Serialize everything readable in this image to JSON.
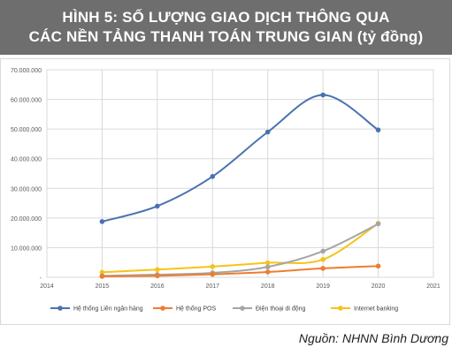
{
  "header": {
    "title_line1": "HÌNH 5: SỐ LƯỢNG GIAO DỊCH THÔNG QUA",
    "title_line2": "CÁC NỀN TẢNG THANH TOÁN TRUNG GIAN (tỷ đồng)"
  },
  "source": "Nguồn: NHNN Bình Dương",
  "colors": {
    "title_bg": "#6e6e6e",
    "interbank": "#4a72b0",
    "pos": "#ed7d31",
    "mobile": "#a5a5a5",
    "internet": "#f7c31a"
  },
  "chart_data": {
    "type": "line",
    "title": "",
    "xlabel": "",
    "ylabel": "",
    "xlim": [
      2014,
      2021
    ],
    "ylim": [
      0,
      70000000
    ],
    "x_ticks": [
      "2014",
      "2015",
      "2016",
      "2017",
      "2018",
      "2019",
      "2020",
      "2021"
    ],
    "y_ticks": [
      "-",
      "10.000.000",
      "20.000.000",
      "30.000.000",
      "40.000.000",
      "50.000.000",
      "60.000.000",
      "70.000.000"
    ],
    "grid": true,
    "legend_position": "bottom",
    "x": [
      2015,
      2016,
      2017,
      2018,
      2019,
      2020
    ],
    "series": [
      {
        "name": "Hệ thống Liên ngân hàng",
        "color": "#4a72b0",
        "values": [
          18800000,
          24000000,
          34000000,
          49000000,
          61500000,
          49700000
        ]
      },
      {
        "name": "Hệ thống POS",
        "color": "#ed7d31",
        "values": [
          300000,
          500000,
          1000000,
          1800000,
          3000000,
          3800000
        ]
      },
      {
        "name": "Điện thoại di động",
        "color": "#a5a5a5",
        "values": [
          500000,
          900000,
          1500000,
          3500000,
          8800000,
          18000000
        ]
      },
      {
        "name": "Internet banking",
        "color": "#f7c31a",
        "values": [
          1700000,
          2600000,
          3600000,
          4900000,
          6000000,
          18200000
        ]
      }
    ]
  }
}
